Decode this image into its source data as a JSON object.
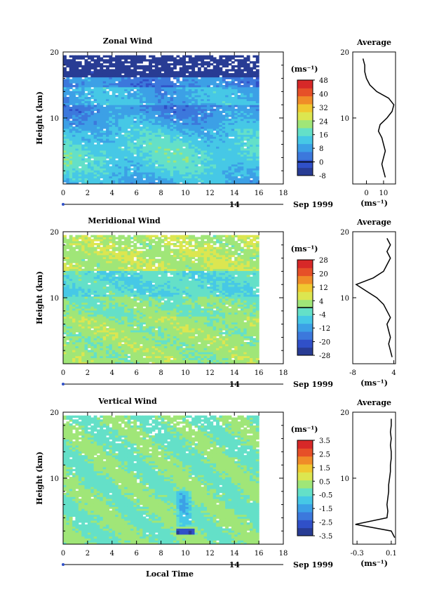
{
  "figure": {
    "xlabel": "Local Time",
    "date_label": "Sep 1999",
    "day_marker": "14",
    "average_title": "Average",
    "unit_label": "(ms⁻¹)"
  },
  "chart_data": [
    {
      "type": "heatmap",
      "title": "Zonal Wind",
      "ylabel": "Height (km)",
      "xlabel": "",
      "x_ticks": [
        "0",
        "2",
        "4",
        "6",
        "8",
        "10",
        "12",
        "14",
        "16",
        "18"
      ],
      "y_ticks": [
        "10",
        "20"
      ],
      "xlim": [
        0,
        18
      ],
      "ylim": [
        0,
        20
      ],
      "data_extent_hours": [
        0,
        16
      ],
      "colorbar": {
        "unit": "(ms⁻¹)",
        "levels": [
          -8,
          0,
          8,
          16,
          24,
          32,
          40,
          48
        ],
        "tick_labels": [
          "48",
          "40",
          "32",
          "24",
          "16",
          "8",
          "0",
          "-8"
        ],
        "contour_at": 0
      },
      "colors": [
        "#283c94",
        "#3050c8",
        "#3c78dc",
        "#3ca0e6",
        "#46c8e6",
        "#64e0c8",
        "#a0e678",
        "#dce650",
        "#f0c830",
        "#f08c28",
        "#e65028",
        "#d72828"
      ],
      "average": {
        "x_ticks": [
          "0",
          "10"
        ],
        "xlim": [
          -8,
          17
        ],
        "xlabel": "(ms⁻¹)",
        "y_ticks": [
          "10",
          "20"
        ],
        "heights": [
          1,
          2,
          3,
          4,
          5,
          6,
          7,
          8,
          9,
          10,
          11,
          12,
          13,
          14,
          15,
          16,
          17,
          18,
          19
        ],
        "values": [
          11,
          10,
          9,
          10,
          11,
          10,
          9,
          7,
          8,
          12,
          15,
          16,
          13,
          6,
          2,
          0,
          -1,
          -1,
          -2
        ]
      }
    },
    {
      "type": "heatmap",
      "title": "Meridional Wind",
      "ylabel": "Height (km)",
      "xlabel": "",
      "x_ticks": [
        "0",
        "2",
        "4",
        "6",
        "8",
        "10",
        "12",
        "14",
        "16",
        "18"
      ],
      "y_ticks": [
        "10",
        "20"
      ],
      "xlim": [
        0,
        18
      ],
      "ylim": [
        0,
        20
      ],
      "data_extent_hours": [
        0,
        16
      ],
      "colorbar": {
        "unit": "(ms⁻¹)",
        "levels": [
          -28,
          -20,
          -12,
          -4,
          4,
          12,
          20,
          28
        ],
        "tick_labels": [
          "28",
          "20",
          "12",
          "4",
          "-4",
          "-12",
          "-20",
          "-28"
        ],
        "contour_at": 0
      },
      "colors": [
        "#283c94",
        "#3050c8",
        "#3c78dc",
        "#3ca0e6",
        "#46c8e6",
        "#64e0c8",
        "#a0e678",
        "#dce650",
        "#f0c830",
        "#f08c28",
        "#e65028",
        "#d72828"
      ],
      "average": {
        "x_ticks": [
          "-8",
          "4"
        ],
        "xlim": [
          -8,
          4.5
        ],
        "xlabel": "(ms⁻¹)",
        "y_ticks": [
          "10",
          "20"
        ],
        "heights": [
          1,
          2,
          3,
          4,
          5,
          6,
          7,
          8,
          9,
          10,
          11,
          12,
          13,
          14,
          15,
          16,
          17,
          18,
          19
        ],
        "values": [
          3.5,
          3,
          2.5,
          3,
          2.5,
          2,
          3,
          2,
          1,
          -1,
          -4,
          -7,
          -2,
          1,
          2,
          3,
          2,
          3,
          2
        ]
      }
    },
    {
      "type": "heatmap",
      "title": "Vertical Wind",
      "ylabel": "Height (km)",
      "xlabel": "Local Time",
      "x_ticks": [
        "0",
        "2",
        "4",
        "6",
        "8",
        "10",
        "12",
        "14",
        "16",
        "18"
      ],
      "y_ticks": [
        "10",
        "20"
      ],
      "xlim": [
        0,
        18
      ],
      "ylim": [
        0,
        20
      ],
      "data_extent_hours": [
        0,
        16
      ],
      "colorbar": {
        "unit": "(ms⁻¹)",
        "levels": [
          -3.5,
          -2.5,
          -1.5,
          -0.5,
          0.5,
          1.5,
          2.5,
          3.5
        ],
        "tick_labels": [
          "3.5",
          "2.5",
          "1.5",
          "0.5",
          "-0.5",
          "-1.5",
          "-2.5",
          "-3.5"
        ],
        "contour_at": null
      },
      "colors": [
        "#283c94",
        "#3050c8",
        "#3c78dc",
        "#3ca0e6",
        "#46c8e6",
        "#64e0c8",
        "#a0e678",
        "#dce650",
        "#f0c830",
        "#f08c28",
        "#e65028",
        "#d72828"
      ],
      "average": {
        "x_ticks": [
          "-0.3",
          "0.1"
        ],
        "xlim": [
          -0.35,
          0.15
        ],
        "xlabel": "(ms⁻¹)",
        "y_ticks": [
          "10",
          "20"
        ],
        "heights": [
          1,
          2,
          3,
          4,
          5,
          6,
          7,
          8,
          9,
          10,
          11,
          12,
          13,
          14,
          15,
          16,
          17,
          18,
          19
        ],
        "values": [
          0.14,
          0.1,
          -0.32,
          0.05,
          0.06,
          0.05,
          0.06,
          0.07,
          0.07,
          0.08,
          0.09,
          0.09,
          0.1,
          0.1,
          0.09,
          0.1,
          0.09,
          0.1,
          0.1
        ]
      }
    }
  ]
}
